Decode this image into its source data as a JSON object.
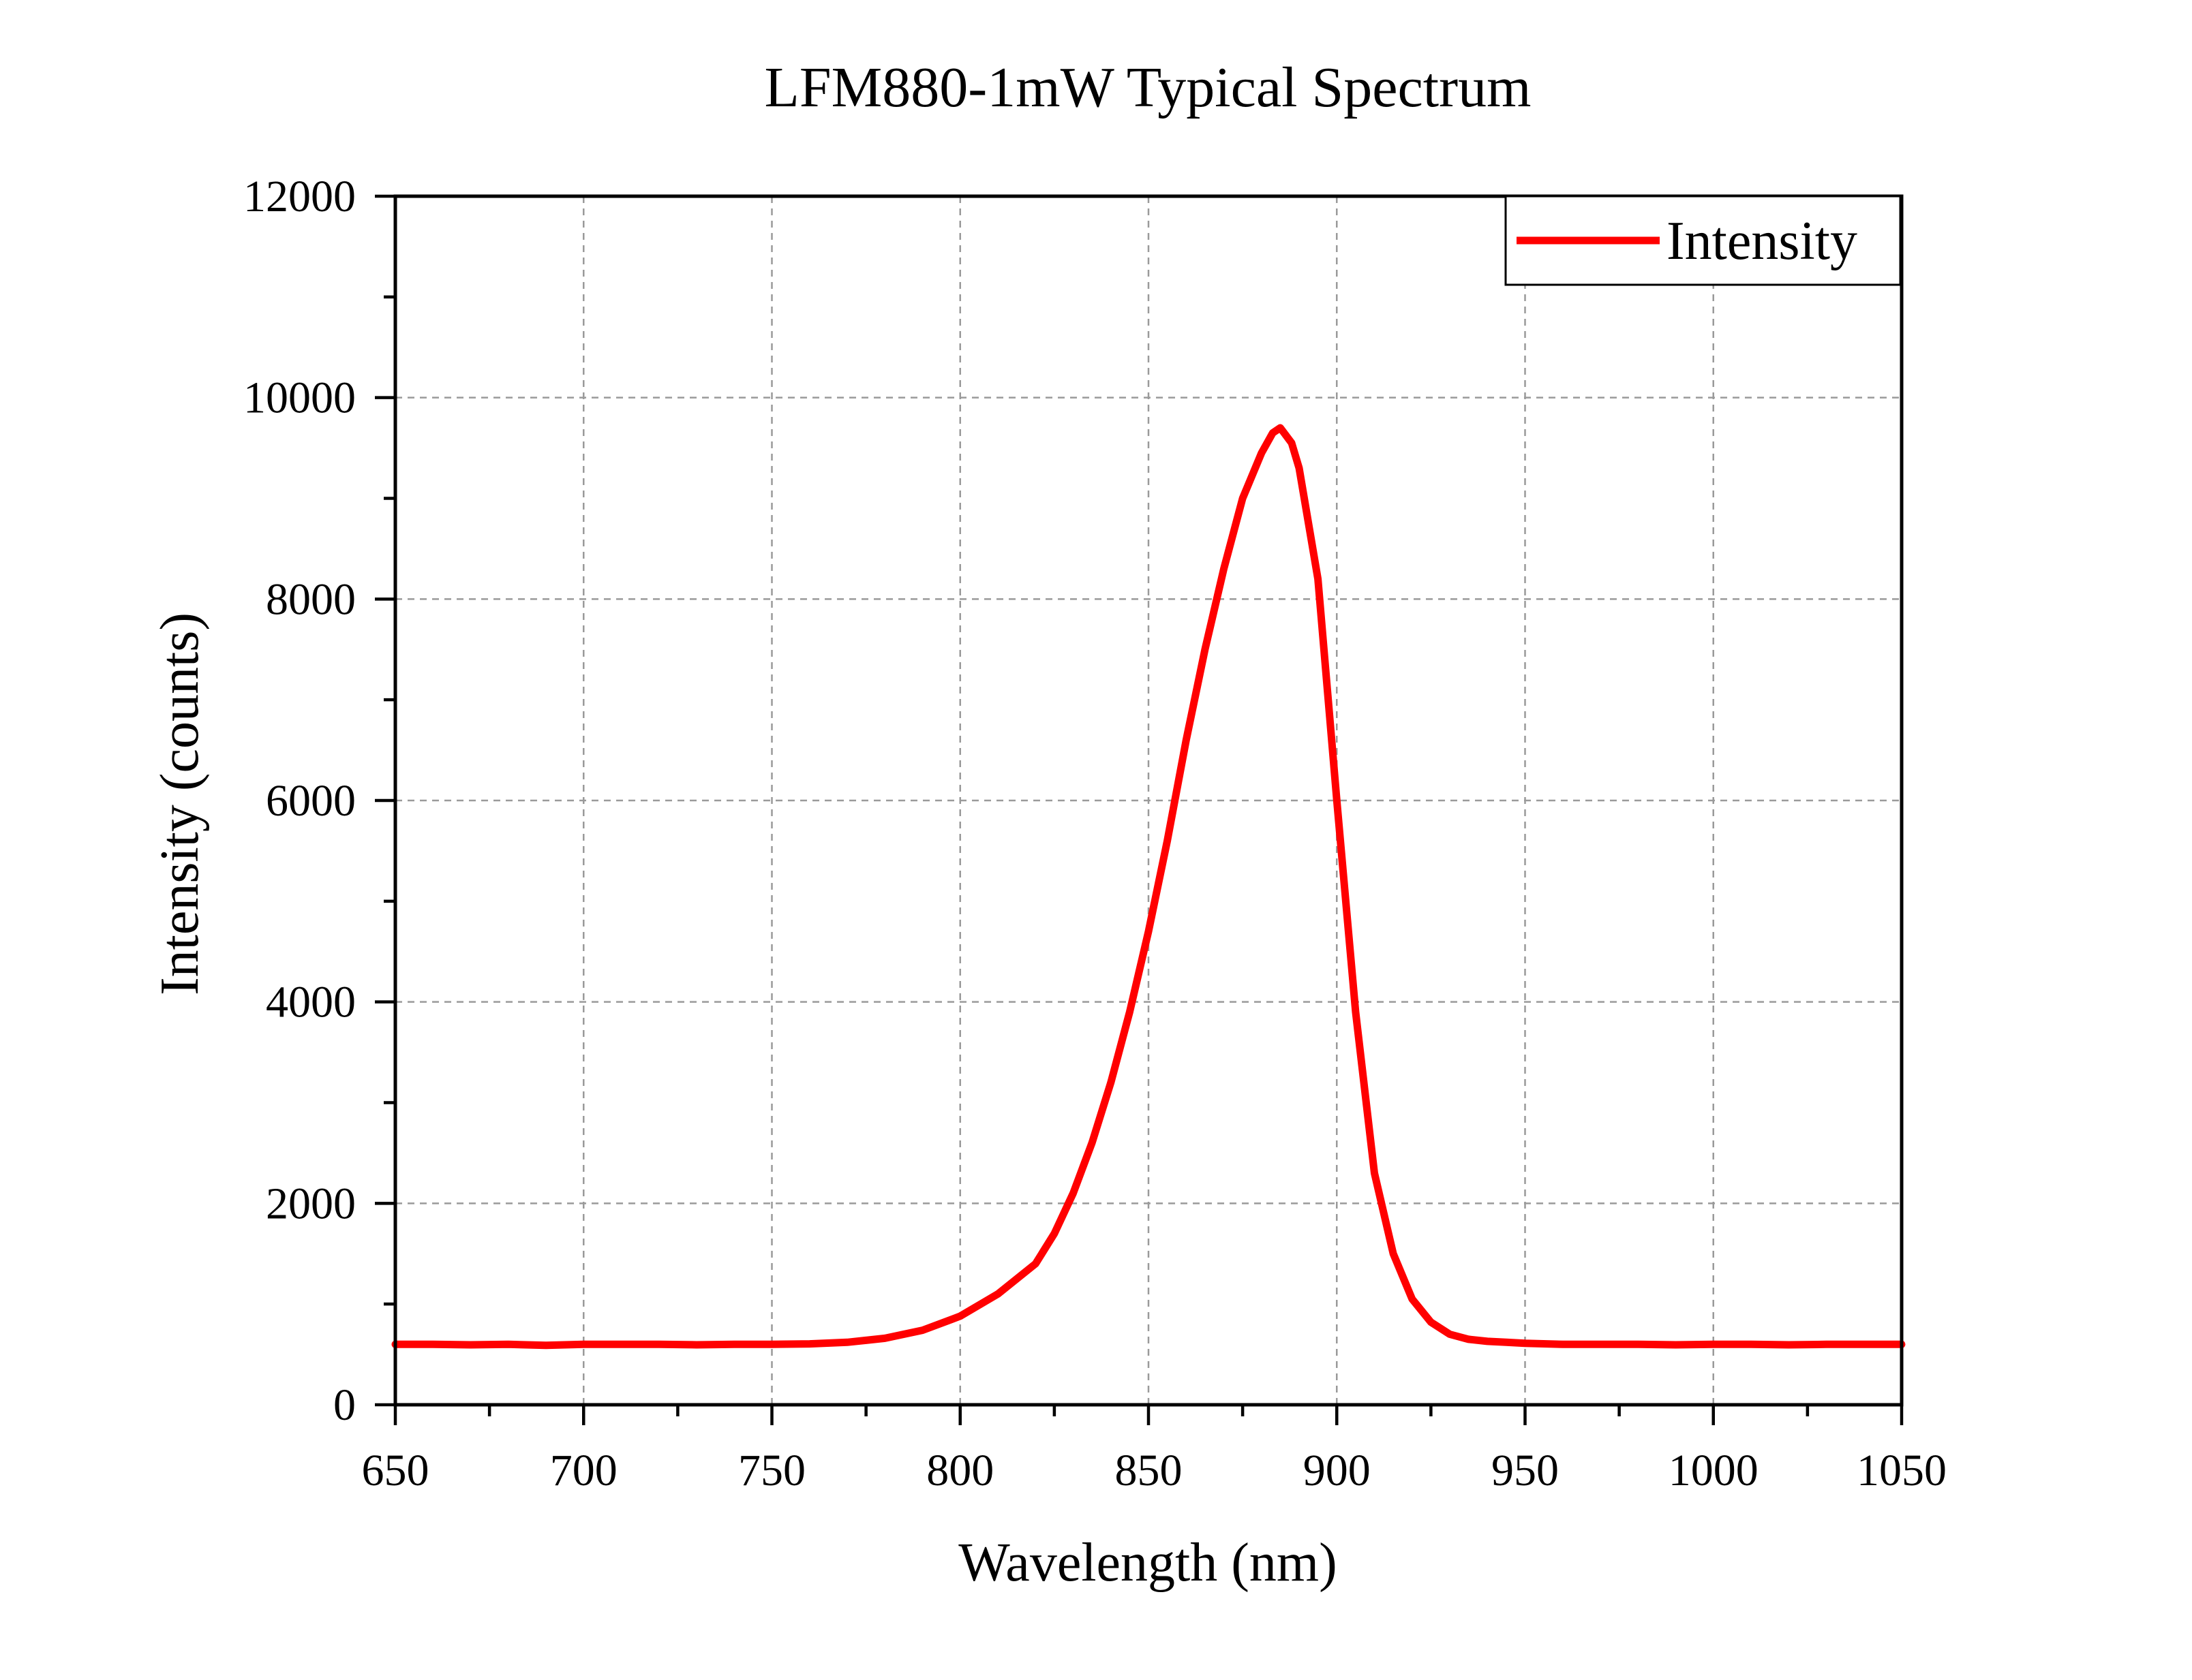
{
  "chart_data": {
    "type": "line",
    "title": "LFM880-1mW Typical Spectrum",
    "xlabel": "Wavelength (nm)",
    "ylabel": "Intensity (counts)",
    "xlim": [
      650,
      1050
    ],
    "ylim": [
      0,
      12000
    ],
    "x_ticks": [
      650,
      700,
      750,
      800,
      850,
      900,
      950,
      1000,
      1050
    ],
    "y_ticks": [
      0,
      2000,
      4000,
      6000,
      8000,
      10000,
      12000
    ],
    "x_tick_labels": [
      "650",
      "700",
      "750",
      "800",
      "850",
      "900",
      "950",
      "1000",
      "1050"
    ],
    "y_tick_labels": [
      "0",
      "2000",
      "4000",
      "6000",
      "8000",
      "10000",
      "12000"
    ],
    "grid": true,
    "legend": {
      "position": "top-right",
      "entries": [
        "Intensity"
      ]
    },
    "series": [
      {
        "name": "Intensity",
        "color": "#ff0000",
        "x": [
          650,
          660,
          670,
          680,
          690,
          700,
          710,
          720,
          730,
          740,
          750,
          760,
          770,
          780,
          790,
          800,
          810,
          820,
          825,
          830,
          835,
          840,
          845,
          850,
          855,
          860,
          865,
          870,
          875,
          880,
          883,
          885,
          888,
          890,
          895,
          900,
          905,
          910,
          915,
          920,
          925,
          930,
          935,
          940,
          945,
          950,
          960,
          970,
          980,
          990,
          1000,
          1010,
          1020,
          1030,
          1040,
          1050
        ],
        "y": [
          600,
          600,
          595,
          600,
          590,
          600,
          600,
          600,
          595,
          600,
          600,
          605,
          620,
          660,
          740,
          880,
          1100,
          1400,
          1700,
          2100,
          2600,
          3200,
          3900,
          4700,
          5600,
          6600,
          7500,
          8300,
          9000,
          9450,
          9650,
          9700,
          9550,
          9300,
          8200,
          6000,
          3900,
          2300,
          1500,
          1050,
          820,
          700,
          650,
          630,
          620,
          610,
          600,
          600,
          600,
          595,
          600,
          600,
          595,
          600,
          600,
          600
        ]
      }
    ]
  }
}
